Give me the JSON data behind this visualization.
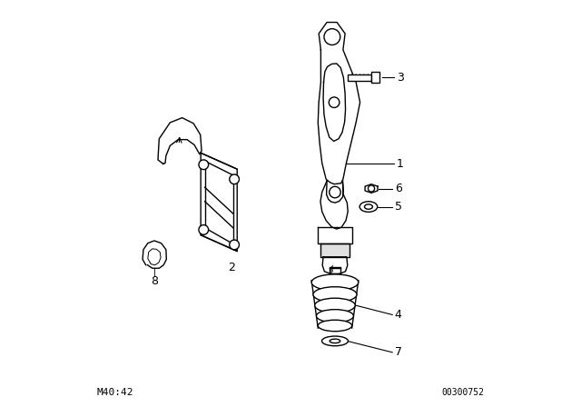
{
  "background_color": "#ffffff",
  "line_color": "#000000",
  "label_color": "#000000",
  "bottom_left_text": "M40:42",
  "bottom_right_text": "00300752",
  "fig_width": 6.4,
  "fig_height": 4.48,
  "dpi": 100
}
